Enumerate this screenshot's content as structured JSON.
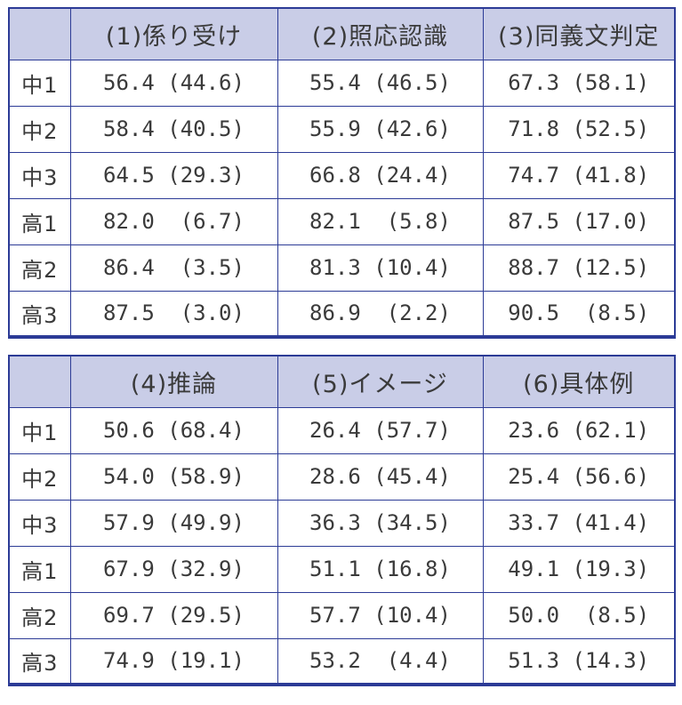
{
  "colors": {
    "header_bg": "#c9cde7",
    "border": "#2c3b96",
    "text": "#3a3a3a",
    "background": "#ffffff"
  },
  "tables": [
    {
      "name": "tasks-1-3",
      "corner": "",
      "columns": [
        "(1)係り受け",
        "(2)照応認識",
        "(3)同義文判定"
      ],
      "rows": [
        {
          "label": "中1",
          "cells": [
            "56.4 (44.6)",
            "55.4 (46.5)",
            "67.3 (58.1)"
          ]
        },
        {
          "label": "中2",
          "cells": [
            "58.4 (40.5)",
            "55.9 (42.6)",
            "71.8 (52.5)"
          ]
        },
        {
          "label": "中3",
          "cells": [
            "64.5 (29.3)",
            "66.8 (24.4)",
            "74.7 (41.8)"
          ]
        },
        {
          "label": "高1",
          "cells": [
            "82.0  (6.7)",
            "82.1  (5.8)",
            "87.5 (17.0)"
          ]
        },
        {
          "label": "高2",
          "cells": [
            "86.4  (3.5)",
            "81.3 (10.4)",
            "88.7 (12.5)"
          ]
        },
        {
          "label": "高3",
          "cells": [
            "87.5  (3.0)",
            "86.9  (2.2)",
            "90.5  (8.5)"
          ]
        }
      ]
    },
    {
      "name": "tasks-4-6",
      "corner": "",
      "columns": [
        "(4)推論",
        "(5)イメージ",
        "(6)具体例"
      ],
      "rows": [
        {
          "label": "中1",
          "cells": [
            "50.6 (68.4)",
            "26.4 (57.7)",
            "23.6 (62.1)"
          ]
        },
        {
          "label": "中2",
          "cells": [
            "54.0 (58.9)",
            "28.6 (45.4)",
            "25.4 (56.6)"
          ]
        },
        {
          "label": "中3",
          "cells": [
            "57.9 (49.9)",
            "36.3 (34.5)",
            "33.7 (41.4)"
          ]
        },
        {
          "label": "高1",
          "cells": [
            "67.9 (32.9)",
            "51.1 (16.8)",
            "49.1 (19.3)"
          ]
        },
        {
          "label": "高2",
          "cells": [
            "69.7 (29.5)",
            "57.7 (10.4)",
            "50.0  (8.5)"
          ]
        },
        {
          "label": "高3",
          "cells": [
            "74.9 (19.1)",
            "53.2  (4.4)",
            "51.3 (14.3)"
          ]
        }
      ]
    }
  ]
}
